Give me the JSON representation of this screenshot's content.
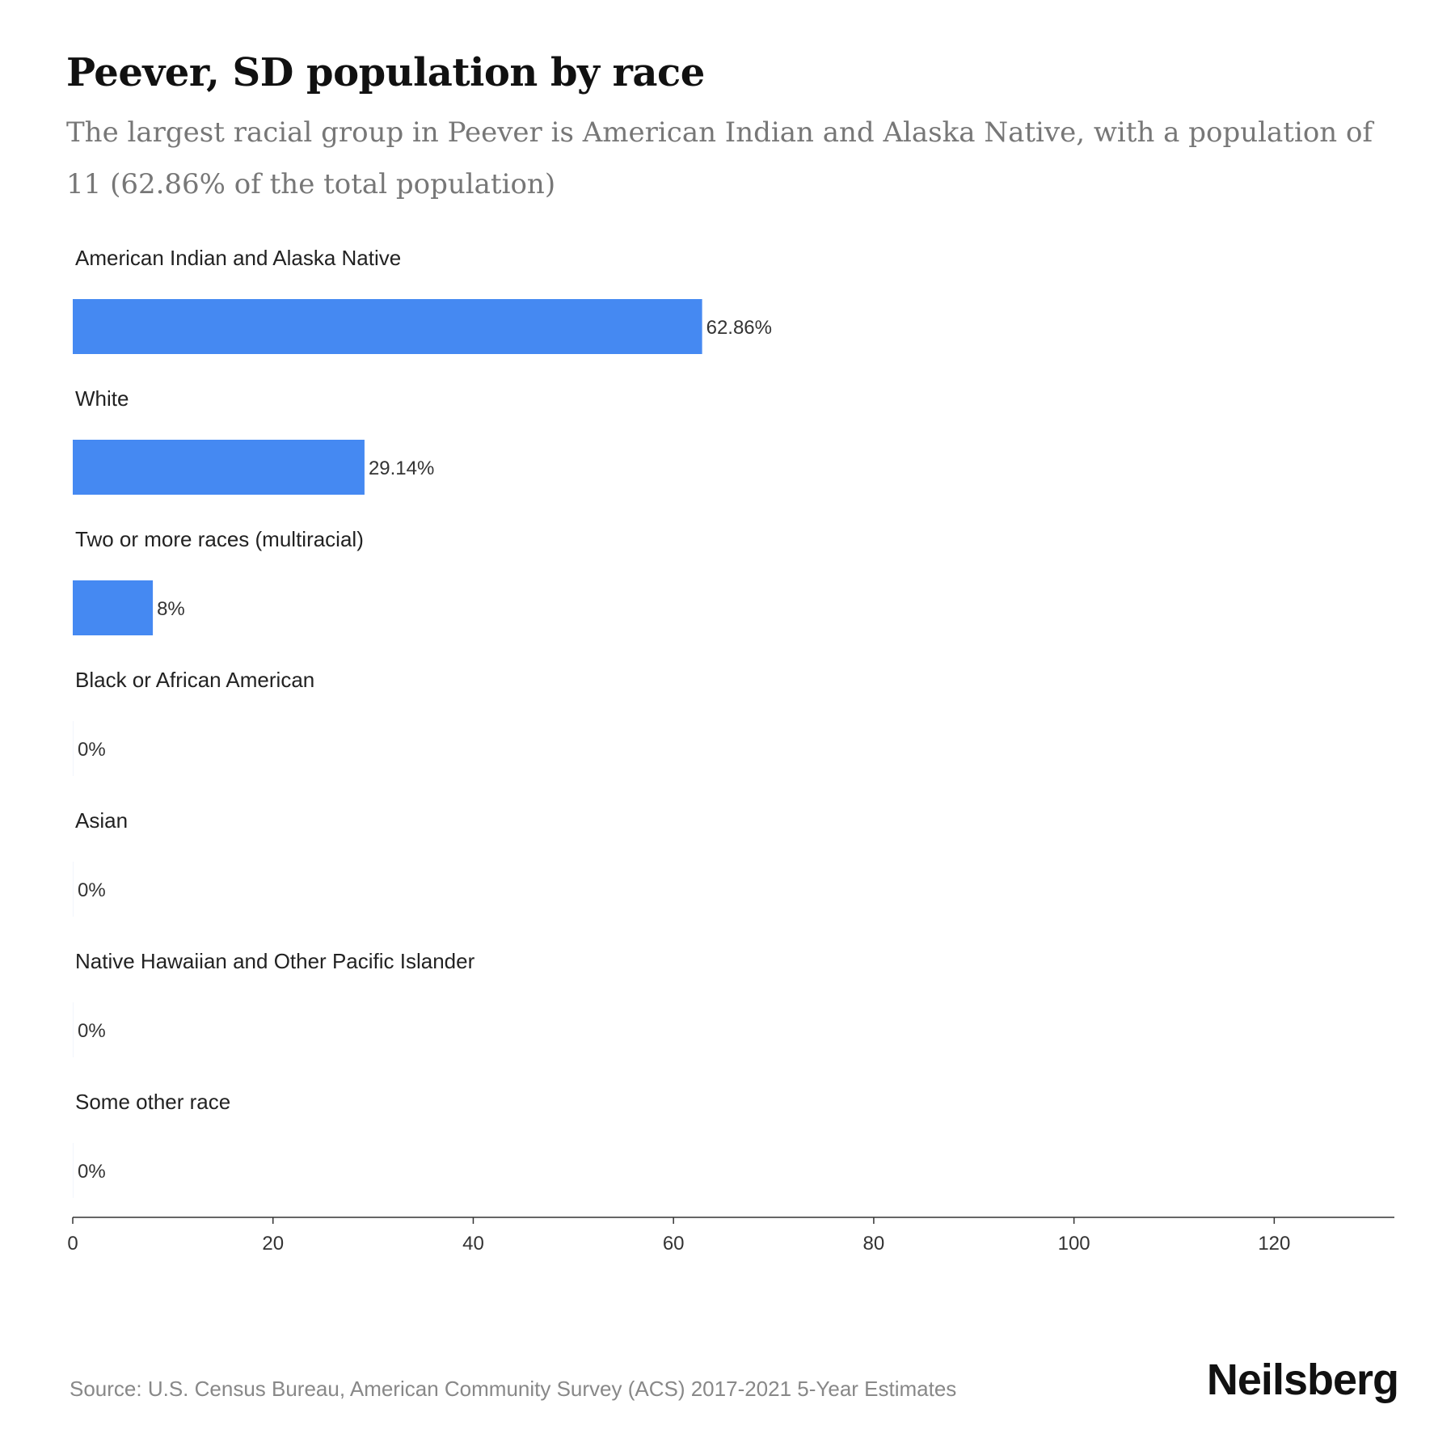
{
  "header": {
    "title": "Peever, SD population by race",
    "subtitle": "The largest racial group in Peever is American Indian and Alaska Native, with a population of 11 (62.86% of the total population)"
  },
  "footer": {
    "source": "Source: U.S. Census Bureau, American Community Survey (ACS) 2017-2021 5-Year Estimates",
    "brand": "Neilsberg"
  },
  "colors": {
    "bar": "#4589f2",
    "axis": "#333333"
  },
  "chart_data": {
    "type": "bar",
    "orientation": "horizontal",
    "categories": [
      "American Indian and Alaska Native",
      "White",
      "Two or more races (multiracial)",
      "Black or African American",
      "Asian",
      "Native Hawaiian and Other Pacific Islander",
      "Some other race"
    ],
    "values": [
      62.86,
      29.14,
      8,
      0,
      0,
      0,
      0
    ],
    "value_labels": [
      "62.86%",
      "29.14%",
      "8%",
      "0%",
      "0%",
      "0%",
      "0%"
    ],
    "xlim": [
      0,
      132
    ],
    "xticks": [
      0,
      20,
      40,
      60,
      80,
      100,
      120
    ],
    "xtick_labels": [
      "0",
      "20",
      "40",
      "60",
      "80",
      "100",
      "120"
    ],
    "grid": false,
    "legend": "none"
  }
}
